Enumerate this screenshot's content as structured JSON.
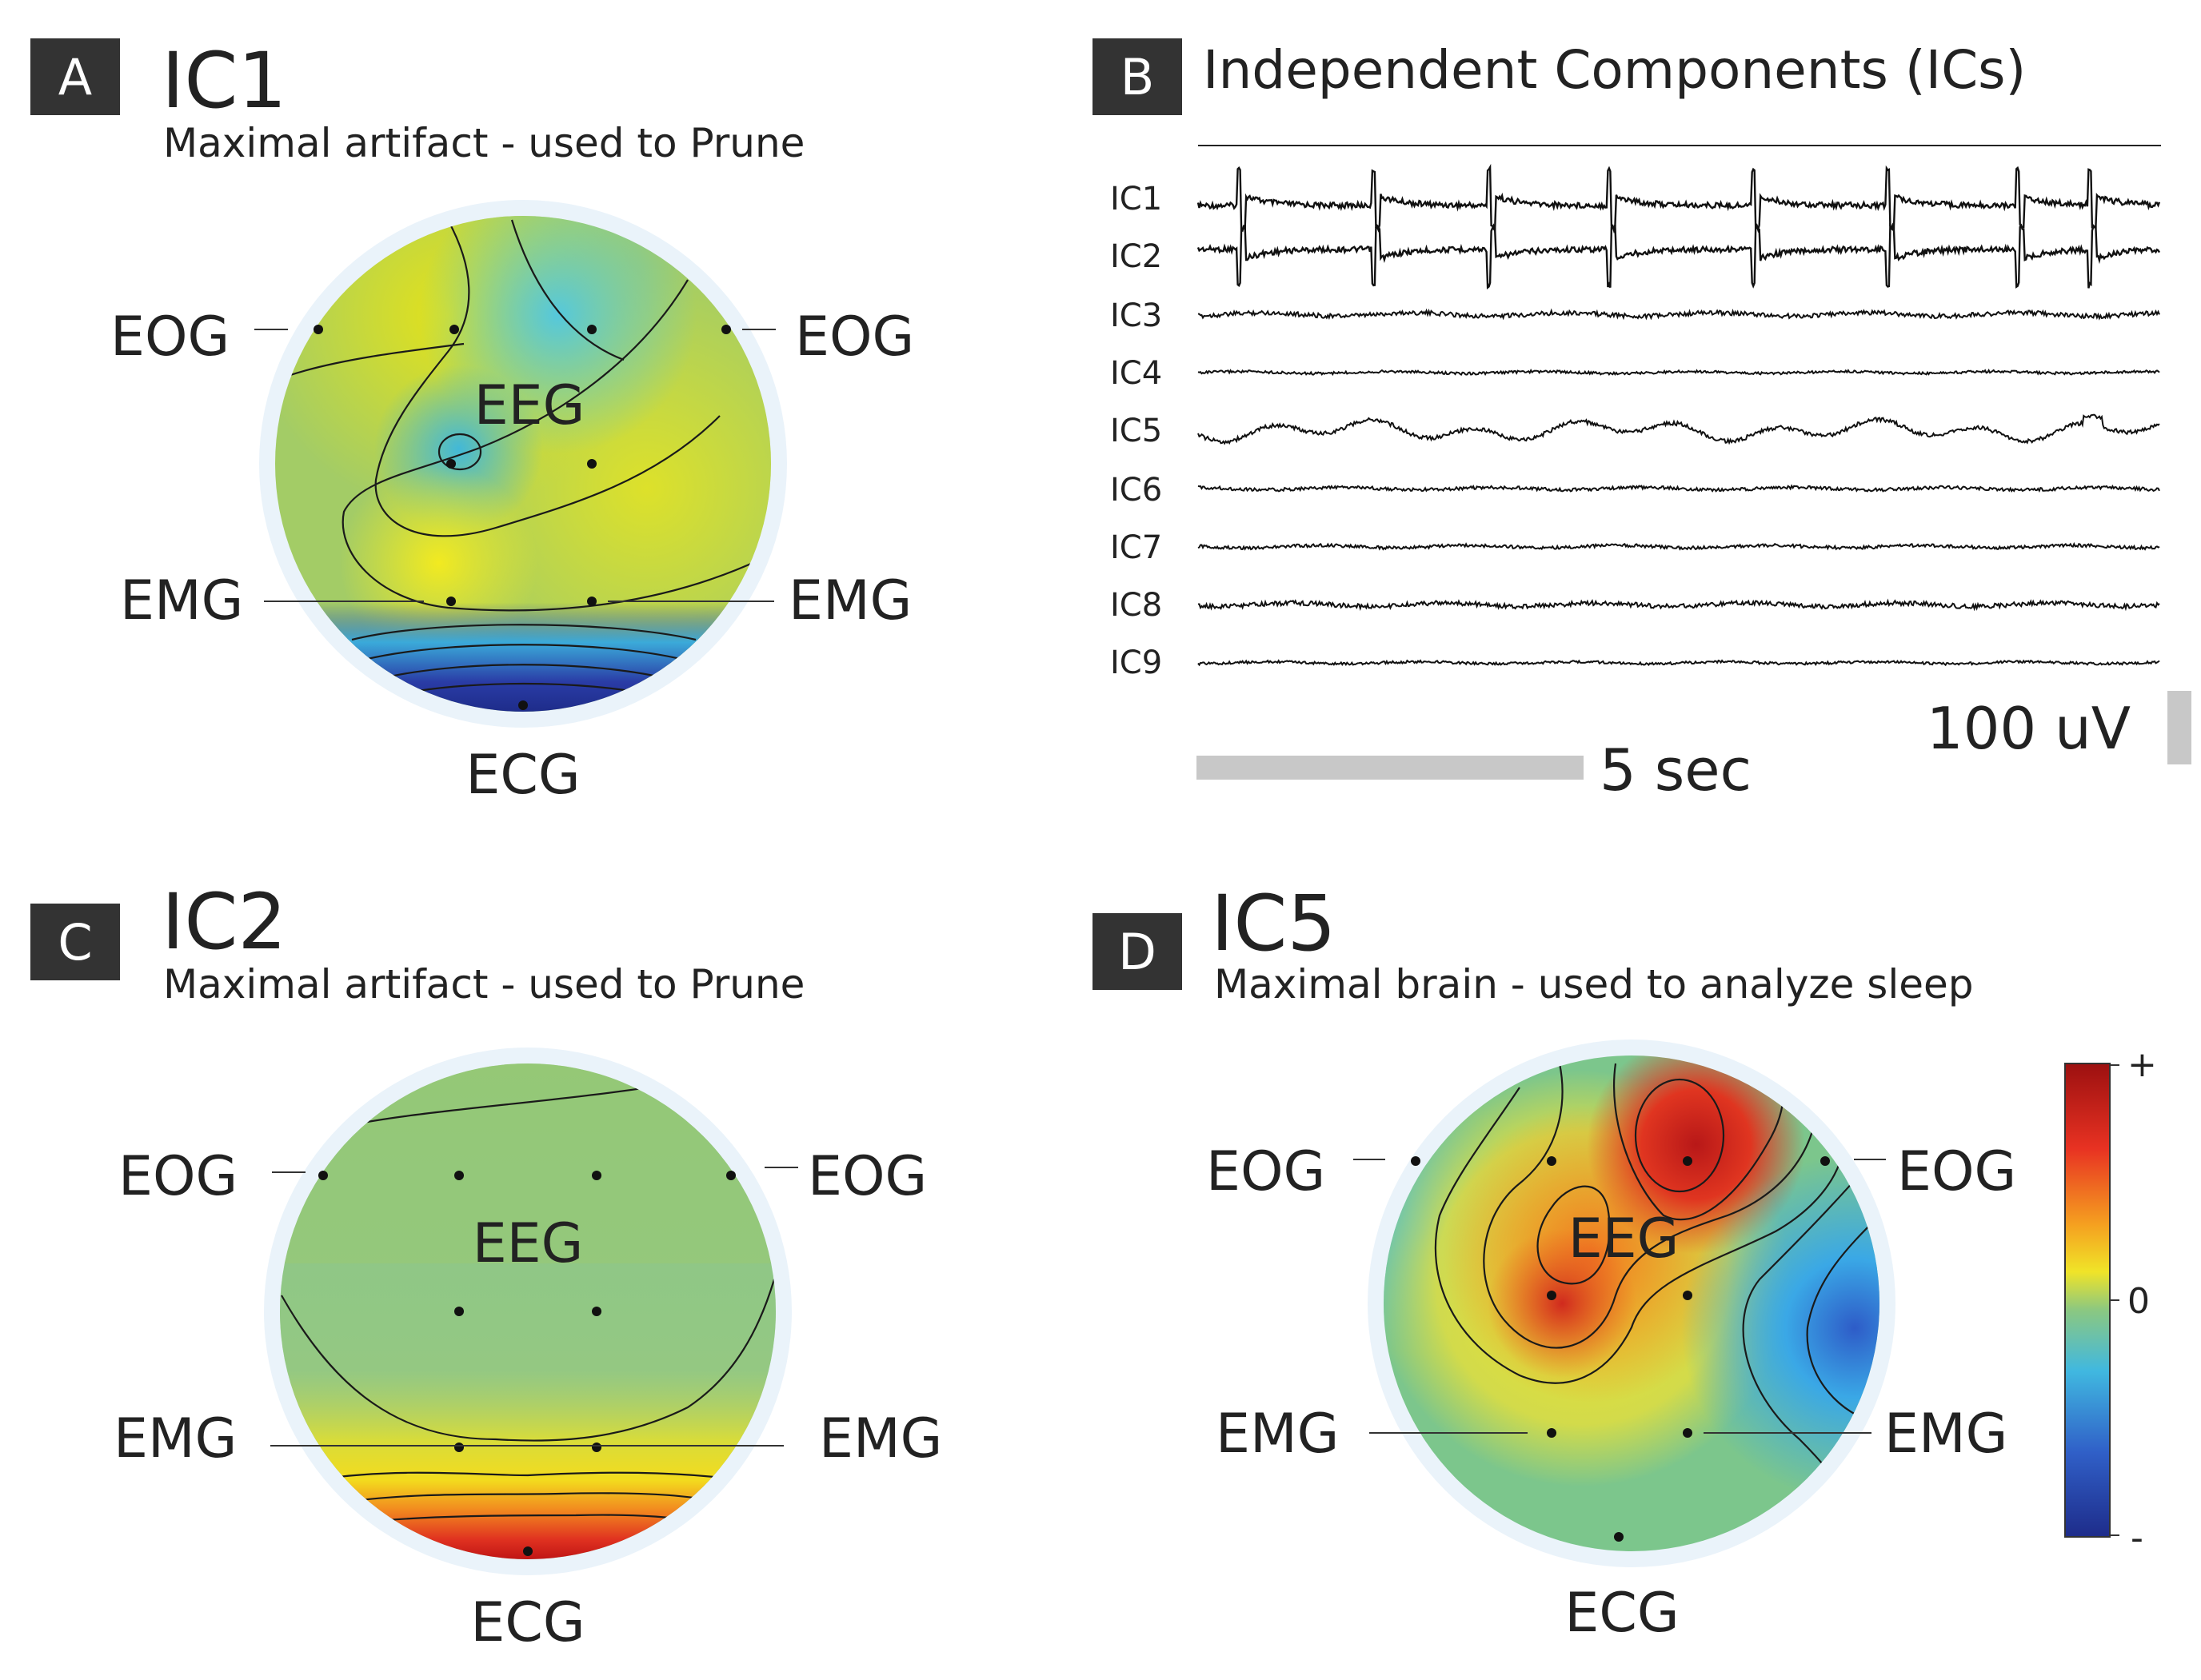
{
  "panels": {
    "a": {
      "letter": "A",
      "title": "IC1",
      "subtitle": "Maximal artifact - used to Prune",
      "labels": {
        "eog_left": "EOG",
        "eog_right": "EOG",
        "eeg": "EEG",
        "emg_left": "EMG",
        "emg_right": "EMG",
        "ecg": "ECG"
      }
    },
    "b": {
      "letter": "B",
      "title": "Independent Components (ICs)",
      "components": [
        "IC1",
        "IC2",
        "IC3",
        "IC4",
        "IC5",
        "IC6",
        "IC7",
        "IC8",
        "IC9"
      ],
      "time_scale_label": "5 sec",
      "amplitude_scale_label": "100 uV"
    },
    "c": {
      "letter": "C",
      "title": "IC2",
      "subtitle": "Maximal artifact - used to Prune",
      "labels": {
        "eog_left": "EOG",
        "eog_right": "EOG",
        "eeg": "EEG",
        "emg_left": "EMG",
        "emg_right": "EMG",
        "ecg": "ECG"
      }
    },
    "d": {
      "letter": "D",
      "title": "IC5",
      "subtitle": "Maximal brain - used to analyze sleep",
      "labels": {
        "eog_left": "EOG",
        "eog_right": "EOG",
        "eeg": "EEG",
        "emg_left": "EMG",
        "emg_right": "EMG",
        "ecg": "ECG"
      },
      "colorbar": {
        "max_label": "+",
        "mid_label": "0",
        "min_label": "-"
      }
    }
  },
  "colors": {
    "badge": "#333333",
    "scale_bar": "#c8c8c8",
    "head_ring": "#eaf3fa",
    "positive": "#b01010",
    "zero": "#7cc68c",
    "negative": "#243b9c"
  }
}
